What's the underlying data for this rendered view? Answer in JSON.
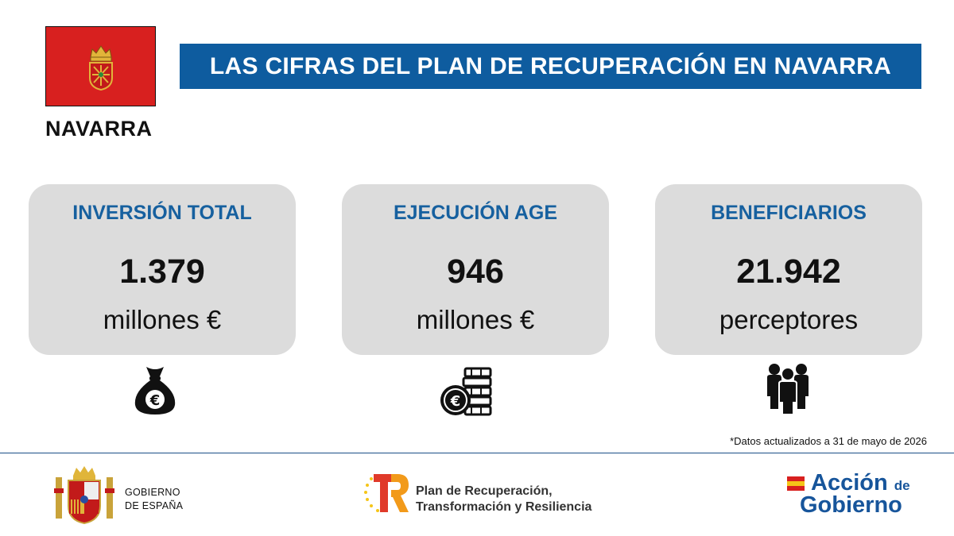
{
  "region": {
    "name": "NAVARRA",
    "flag_color": "#d8201f"
  },
  "title": "LAS CIFRAS DEL PLAN DE RECUPERACIÓN EN NAVARRA",
  "colors": {
    "title_bar": "#0e5c9f",
    "card_label": "#16609f",
    "card_bg": "#dcdcdc"
  },
  "cards": [
    {
      "label": "INVERSIÓN TOTAL",
      "value": "1.379",
      "unit": "millones €",
      "icon": "money-bag-euro-icon"
    },
    {
      "label": "EJECUCIÓN AGE",
      "value": "946",
      "unit": "millones €",
      "icon": "coin-stack-euro-icon"
    },
    {
      "label": "BENEFICIARIOS",
      "value": "21.942",
      "unit": "perceptores",
      "icon": "people-group-icon"
    }
  ],
  "note": "*Datos actualizados a 31 de mayo de 2026",
  "footer": {
    "gobierno": [
      "GOBIERNO",
      "DE ESPAÑA"
    ],
    "prtr": [
      "Plan de Recuperación,",
      "Transformación y Resiliencia"
    ],
    "accion": {
      "word1": "Acción",
      "word2": "de",
      "word3": "Gobierno"
    }
  }
}
